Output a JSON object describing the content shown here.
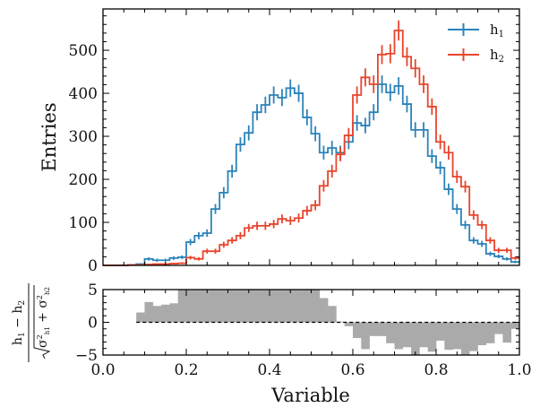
{
  "chart_data": [
    {
      "type": "histogram",
      "panel": "main",
      "xlabel": "",
      "ylabel": "Entries",
      "xlim": [
        0.0,
        1.0
      ],
      "ylim": [
        0,
        596
      ],
      "yticks": [
        0,
        100,
        200,
        300,
        400,
        500
      ],
      "ytick_labels": [
        "0",
        "100",
        "200",
        "300",
        "400",
        "500"
      ],
      "bin_width": 0.02,
      "bin_edges_start": 0.0,
      "legend": {
        "placement": "top-right",
        "entries": [
          {
            "label": "h",
            "subscript": "1",
            "color": "#2b83ba"
          },
          {
            "label": "h",
            "subscript": "2",
            "color": "#e8452c"
          }
        ]
      },
      "series": [
        {
          "name": "h1",
          "color": "#2b83ba",
          "values": [
            0,
            0,
            0,
            1,
            3,
            15,
            12,
            12,
            17,
            19,
            54,
            69,
            75,
            131,
            169,
            219,
            281,
            308,
            356,
            373,
            396,
            390,
            412,
            400,
            344,
            306,
            262,
            273,
            262,
            287,
            331,
            325,
            356,
            421,
            402,
            417,
            375,
            315,
            315,
            254,
            227,
            177,
            131,
            94,
            58,
            50,
            27,
            21,
            15,
            8
          ]
        },
        {
          "name": "h2",
          "color": "#e8452c",
          "values": [
            0,
            0,
            0,
            1,
            1,
            2,
            3,
            3,
            4,
            5,
            18,
            15,
            33,
            33,
            48,
            58,
            69,
            87,
            92,
            92,
            96,
            108,
            104,
            110,
            127,
            140,
            185,
            219,
            258,
            302,
            396,
            437,
            421,
            490,
            492,
            546,
            485,
            458,
            421,
            369,
            287,
            262,
            206,
            183,
            117,
            94,
            58,
            35,
            35,
            17
          ]
        }
      ]
    },
    {
      "type": "bar",
      "panel": "ratio",
      "xlabel": "Variable",
      "ylabel": "(h1 − h2) / sqrt(σ²h1 + σ²h2)",
      "ylabel_parts": {
        "numerator": "h",
        "numerator_sub1": "1",
        "minus": "−",
        "numerator2": "h",
        "numerator_sub2": "2",
        "denominator": "σ²h1 + σ²h2"
      },
      "xlim": [
        0.0,
        1.0
      ],
      "ylim": [
        -5,
        5
      ],
      "xticks": [
        0.0,
        0.2,
        0.4,
        0.6,
        0.8,
        1.0
      ],
      "xtick_labels": [
        "0.0",
        "0.2",
        "0.4",
        "0.6",
        "0.8",
        "1.0"
      ],
      "yticks": [
        -5,
        0,
        5
      ],
      "ytick_labels": [
        "−5",
        "0",
        "5"
      ],
      "reference_line": 0,
      "bar_color": "#aaaaaa",
      "bin_width": 0.02,
      "values": [
        0,
        0,
        0,
        0,
        1.5,
        3.1,
        2.5,
        2.7,
        2.9,
        5,
        5,
        5,
        5,
        5,
        5,
        5,
        5,
        5,
        5,
        5,
        5,
        5,
        5,
        5,
        5,
        5,
        3.7,
        2.5,
        0.1,
        -0.6,
        -2.4,
        -4.1,
        -2.1,
        -2.1,
        -3.2,
        -4.1,
        -3.8,
        -5,
        -3.8,
        -4.5,
        -2.8,
        -4.2,
        -4.1,
        -5,
        -4.4,
        -3.5,
        -3.2,
        -1.8,
        -3.1,
        -1.0
      ]
    }
  ]
}
